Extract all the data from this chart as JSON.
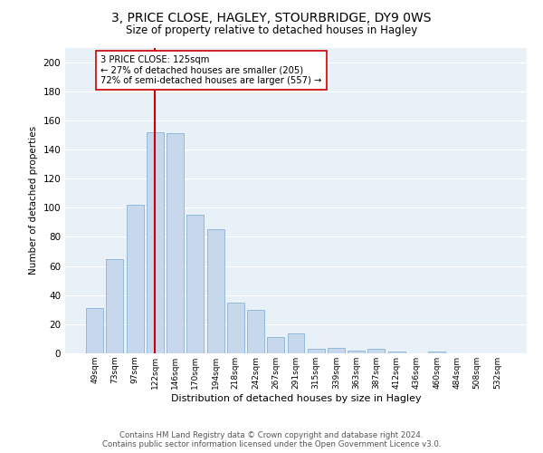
{
  "title": "3, PRICE CLOSE, HAGLEY, STOURBRIDGE, DY9 0WS",
  "subtitle": "Size of property relative to detached houses in Hagley",
  "xlabel": "Distribution of detached houses by size in Hagley",
  "ylabel": "Number of detached properties",
  "categories": [
    "49sqm",
    "73sqm",
    "97sqm",
    "122sqm",
    "146sqm",
    "170sqm",
    "194sqm",
    "218sqm",
    "242sqm",
    "267sqm",
    "291sqm",
    "315sqm",
    "339sqm",
    "363sqm",
    "387sqm",
    "412sqm",
    "436sqm",
    "460sqm",
    "484sqm",
    "508sqm",
    "532sqm"
  ],
  "values": [
    31,
    65,
    102,
    152,
    151,
    95,
    85,
    35,
    30,
    11,
    14,
    3,
    4,
    2,
    3,
    1,
    0,
    1,
    0,
    0,
    0
  ],
  "bar_color": "#c8d8ec",
  "bar_edge_color": "#7aaad0",
  "ylim": [
    0,
    210
  ],
  "yticks": [
    0,
    20,
    40,
    60,
    80,
    100,
    120,
    140,
    160,
    180,
    200
  ],
  "vline_x": 3,
  "vline_color": "#cc0000",
  "annotation_line1": "3 PRICE CLOSE: 125sqm",
  "annotation_line2": "← 27% of detached houses are smaller (205)",
  "annotation_line3": "72% of semi-detached houses are larger (557) →",
  "annotation_box_color": "#ffffff",
  "annotation_box_edge_color": "#cc0000",
  "footer_line1": "Contains HM Land Registry data © Crown copyright and database right 2024.",
  "footer_line2": "Contains public sector information licensed under the Open Government Licence v3.0.",
  "background_color": "#ffffff",
  "plot_bg_color": "#e8f0f8",
  "grid_color": "#ffffff"
}
